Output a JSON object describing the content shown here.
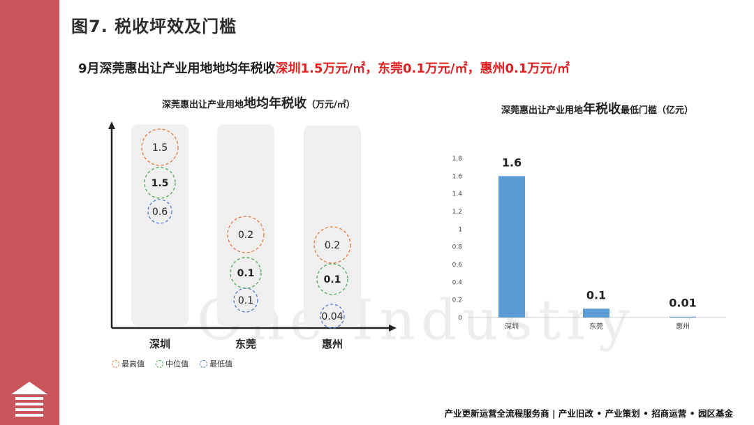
{
  "header": {
    "title": "图7. 税收坪效及门槛"
  },
  "subtitle": {
    "prefix": "9月深莞惠出让产业用地地均年税收",
    "highlight": "深圳1.5万元/㎡，东莞0.1万元/㎡，惠州0.1万元/㎡"
  },
  "watermark": "One Industry",
  "footer": "产业更新运营全流程服务商  |  产业旧改 • 产业策划 • 招商运营 • 园区基金",
  "colors": {
    "sidebar": "#c9545a",
    "highlight_red": "#e02020",
    "max_circle": "#e8773a",
    "median_circle": "#4caf50",
    "min_circle": "#4a7fd6",
    "bar": "#5b9bd5"
  },
  "left_chart_title": {
    "part1": "深莞惠出让产业用地",
    "part2": "地均年税收",
    "part3": "（万元/㎡）"
  },
  "right_chart_title": {
    "part1": "深莞惠出让产业用地",
    "part2": "年税收",
    "part3": "最低门槛（亿元）"
  },
  "legend": {
    "max": "最高值",
    "median": "中位值",
    "min": "最低值"
  },
  "chart_data": [
    {
      "type": "scatter",
      "title": "深莞惠出让产业用地地均年税收（万元/㎡）",
      "categories": [
        "深圳",
        "东莞",
        "惠州"
      ],
      "series": [
        {
          "name": "最高值",
          "values": [
            1.5,
            0.2,
            0.2
          ],
          "labels": [
            "1.5",
            "0.2",
            "0.2"
          ]
        },
        {
          "name": "中位值",
          "values": [
            1.5,
            0.1,
            0.1
          ],
          "labels": [
            "1.5",
            "0.1",
            "0.1"
          ]
        },
        {
          "name": "最低值",
          "values": [
            0.6,
            0.1,
            0.04
          ],
          "labels": [
            "0.6",
            "0.1",
            "0.04"
          ]
        }
      ]
    },
    {
      "type": "bar",
      "title": "深莞惠出让产业用地年税收最低门槛（亿元）",
      "categories": [
        "深圳",
        "东莞",
        "惠州"
      ],
      "values": [
        1.6,
        0.1,
        0.01
      ],
      "value_labels": [
        "1.6",
        "0.1",
        "0.01"
      ],
      "yticks": [
        "0",
        "0.2",
        "0.4",
        "0.6",
        "0.8",
        "1",
        "1.2",
        "1.4",
        "1.6",
        "1.8"
      ],
      "ylim": [
        0,
        1.8
      ]
    }
  ]
}
